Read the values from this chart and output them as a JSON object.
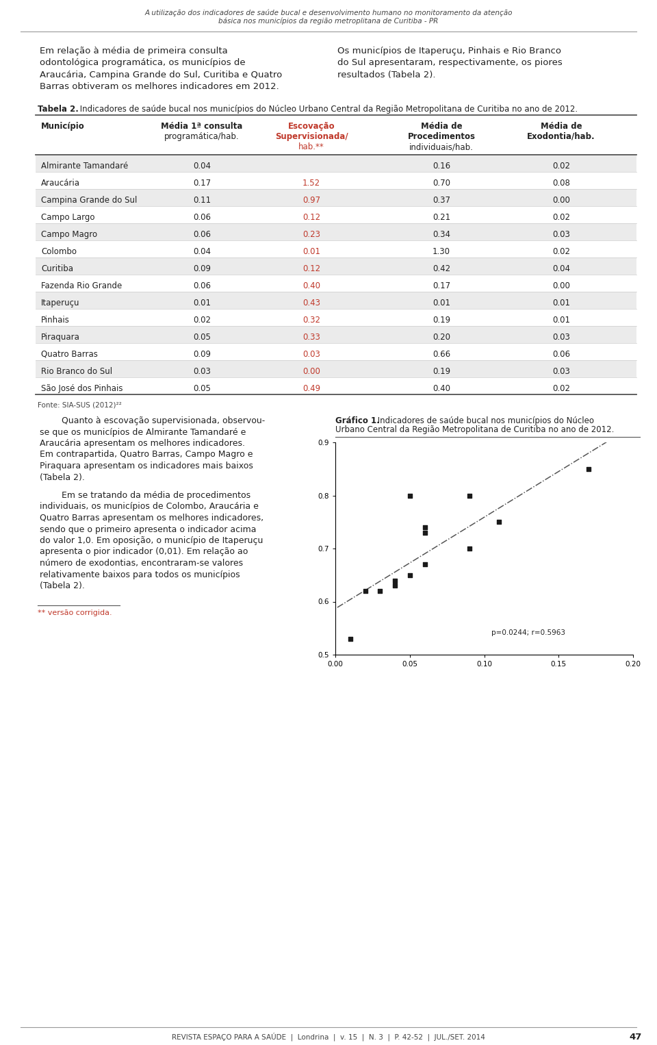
{
  "header_line1": "A utilização dos indicadores de saúde bucal e desenvolvimento humano no monitoramento da atenção",
  "header_line2": "básica nos municípios da região metroplitana de Curitiba - PR",
  "municipalities": [
    "Almirante Tamandaré",
    "Araucária",
    "Campina Grande do Sul",
    "Campo Largo",
    "Campo Magro",
    "Colombo",
    "Curitiba",
    "Fazenda Rio Grande",
    "Itaperuçu",
    "Pinhais",
    "Piraquara",
    "Quatro Barras",
    "Rio Branco do Sul",
    "São José dos Pinhais"
  ],
  "col1": [
    0.04,
    0.17,
    0.11,
    0.06,
    0.06,
    0.04,
    0.09,
    0.06,
    0.01,
    0.02,
    0.05,
    0.09,
    0.03,
    0.05
  ],
  "col2": [
    "",
    "1.52",
    "0.97",
    "0.12",
    "0.23",
    "0.01",
    "0.12",
    "0.40",
    "0.43",
    "0.32",
    "0.33",
    "0.03",
    "0.00",
    "0.49"
  ],
  "col3": [
    0.16,
    0.7,
    0.37,
    0.21,
    0.34,
    1.3,
    0.42,
    0.17,
    0.01,
    0.19,
    0.2,
    0.66,
    0.19,
    0.4
  ],
  "col4": [
    0.02,
    0.08,
    0.0,
    0.02,
    0.03,
    0.02,
    0.04,
    0.0,
    0.01,
    0.01,
    0.03,
    0.06,
    0.03,
    0.02
  ],
  "fonte": "Fonte: SIA-SUS (2012)²²",
  "footnote": "** versão corrigida.",
  "footer": "REVISTA ESPAÇO PARA A SAÚDE  |  Londrina  |  v. 15  |  N. 3  |  P. 42-52  |  JUL./SET. 2014",
  "footer_page": "47",
  "scatter_x": [
    0.02,
    0.04,
    0.04,
    0.05,
    0.05,
    0.06,
    0.06,
    0.06,
    0.09,
    0.09,
    0.11,
    0.17,
    0.01,
    0.03
  ],
  "scatter_y": [
    0.62,
    0.63,
    0.64,
    0.65,
    0.8,
    0.67,
    0.73,
    0.74,
    0.7,
    0.8,
    0.75,
    0.85,
    0.53,
    0.62
  ],
  "scatter_note": "p=0.0244; r=0.5963",
  "red_color": "#c0392b",
  "dark_color": "#222222",
  "gray_color": "#555555",
  "light_gray": "#888888",
  "row_even_color": "#ebebeb",
  "bg_color": "#ffffff"
}
